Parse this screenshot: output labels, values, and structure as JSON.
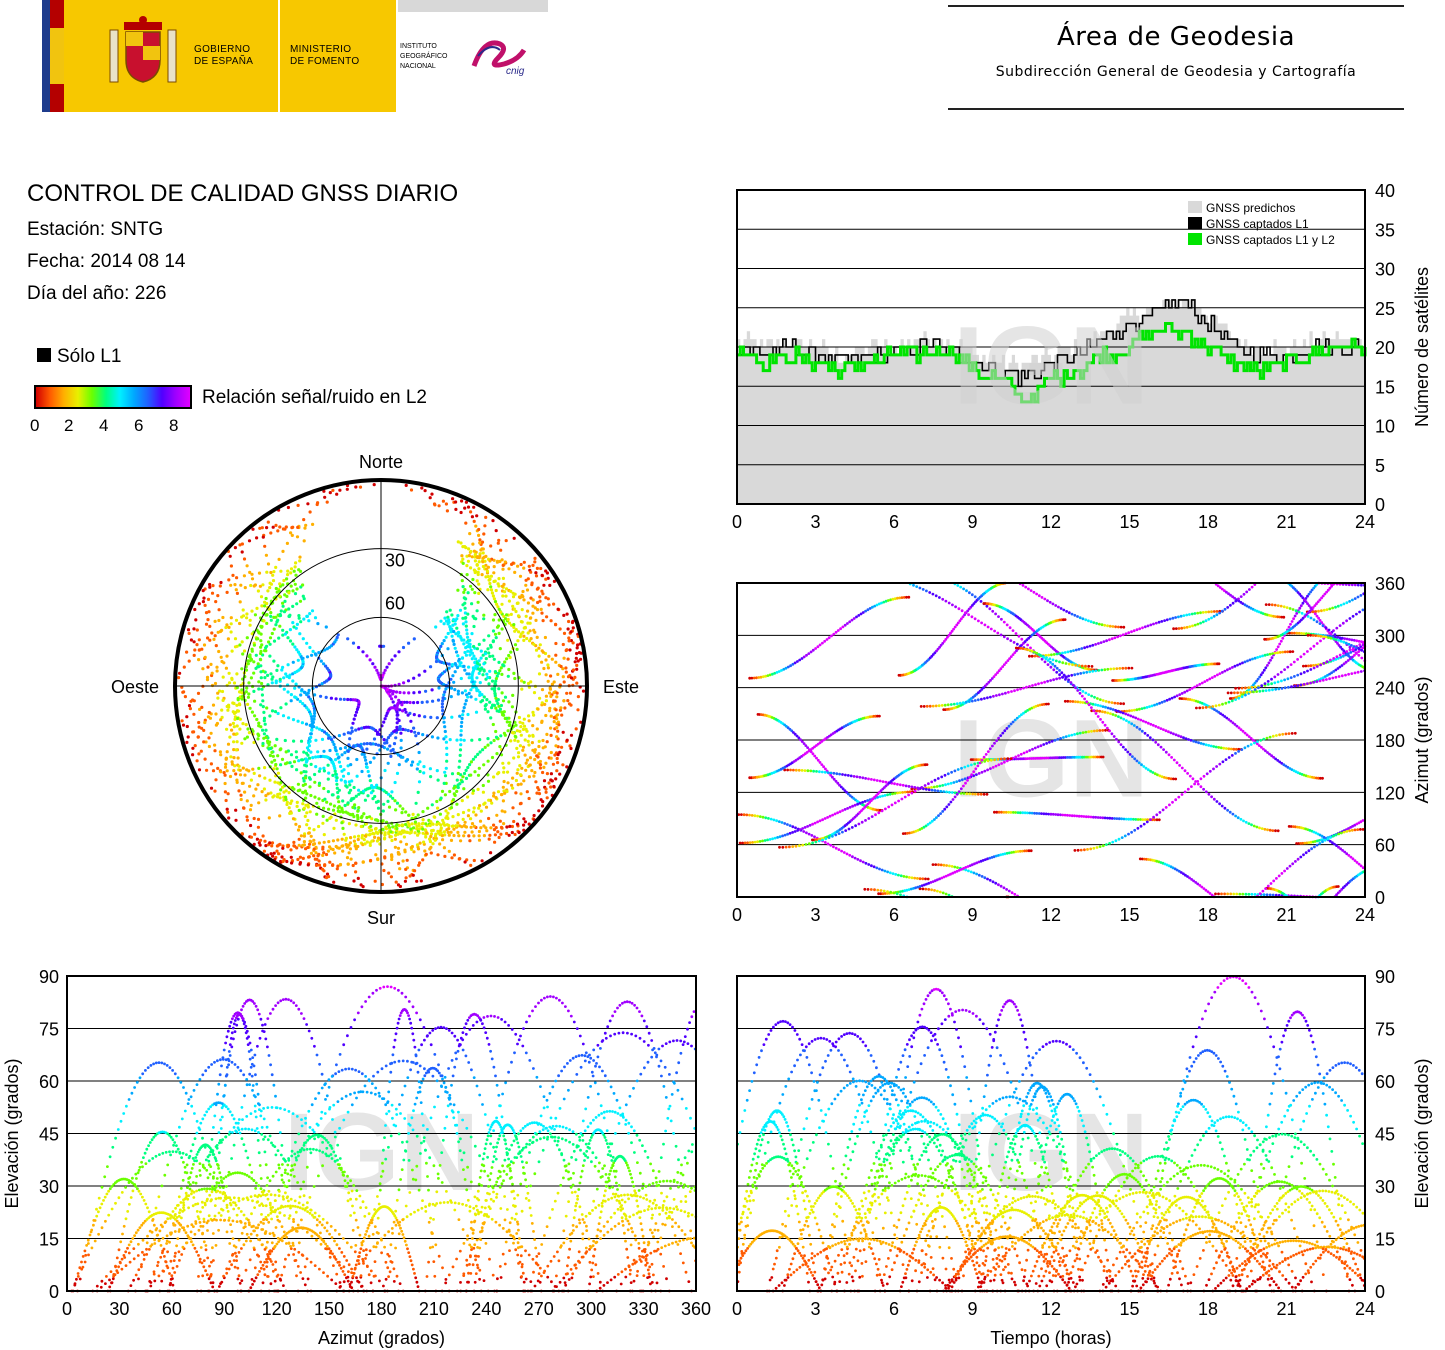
{
  "header": {
    "gov_line1": "GOBIERNO",
    "gov_line2": "DE ESPAÑA",
    "min_line1": "MINISTERIO",
    "min_line2": "DE FOMENTO",
    "inst_line1": "INSTITUTO",
    "inst_line2": "GEOGRÁFICO",
    "inst_line3": "NACIONAL",
    "cnig": "cnig",
    "area_title": "Área de Geodesia",
    "area_subtitle": "Subdirección General de Geodesia y Cartografía"
  },
  "info": {
    "title": "CONTROL DE CALIDAD GNSS DIARIO",
    "station": "Estación: SNTG",
    "date": "Fecha: 2014 08 14",
    "doy": "Día del año: 226"
  },
  "legend": {
    "l1_only": "Sólo L1",
    "snr_label": "Relación señal/ruido en L2",
    "snr_ticks": [
      "0",
      "2",
      "4",
      "6",
      "8"
    ]
  },
  "watermark": "IGN",
  "colors": {
    "predicted": "#d9d9d9",
    "l1": "#000000",
    "l1l2": "#00e400",
    "snr_scale": [
      "#d10000",
      "#ff5a00",
      "#ffb000",
      "#e8f000",
      "#6aff00",
      "#00ff80",
      "#00f0ff",
      "#00a8ff",
      "#2060ff",
      "#5000ff",
      "#a000ff",
      "#e000ff"
    ]
  },
  "chart_data": [
    {
      "id": "satellites",
      "type": "line",
      "title": "",
      "xlabel": "",
      "ylabel": "Número de satélites",
      "xlim": [
        0,
        24
      ],
      "ylim": [
        0,
        40
      ],
      "xticks": [
        "0",
        "3",
        "6",
        "9",
        "12",
        "15",
        "18",
        "21",
        "24"
      ],
      "yticks": [
        "0",
        "5",
        "10",
        "15",
        "20",
        "25",
        "30",
        "35",
        "40"
      ],
      "grid": "horizontal",
      "legend_position": "top-right",
      "x": [
        0,
        1,
        2,
        3,
        4,
        5,
        6,
        7,
        8,
        9,
        10,
        11,
        12,
        13,
        14,
        15,
        16,
        17,
        18,
        19,
        20,
        21,
        22,
        23,
        24
      ],
      "series": [
        {
          "name": "GNSS predichos",
          "values": [
            21,
            20,
            21,
            20,
            19,
            20,
            20,
            21,
            21,
            19,
            18,
            18,
            19,
            20,
            22,
            24,
            25,
            26,
            24,
            21,
            20,
            20,
            21,
            21,
            21
          ]
        },
        {
          "name": "GNSS captados L1",
          "values": [
            20,
            19,
            20,
            19,
            18,
            19,
            19,
            20,
            20,
            18,
            17,
            16,
            18,
            19,
            21,
            23,
            24,
            26,
            23,
            20,
            19,
            19,
            20,
            20,
            20
          ]
        },
        {
          "name": "GNSS captados L1 y L2",
          "values": [
            20,
            18,
            19,
            18,
            17,
            18,
            19,
            19,
            20,
            17,
            16,
            13,
            16,
            17,
            19,
            20,
            22,
            22,
            20,
            18,
            17,
            18,
            19,
            20,
            20
          ]
        }
      ]
    },
    {
      "id": "skyplot",
      "type": "scatter",
      "title": "",
      "radial_labels": [
        "30",
        "60"
      ],
      "directions": {
        "north": "Norte",
        "south": "Sur",
        "east": "Este",
        "west": "Oeste"
      },
      "description_values": "satellite tracks, elevation 0-90, colored by L2 SNR 0-8"
    },
    {
      "id": "azimuth_time",
      "type": "scatter",
      "xlabel": "",
      "ylabel": "Azimut (grados)",
      "xlim": [
        0,
        24
      ],
      "ylim": [
        0,
        360
      ],
      "xticks": [
        "0",
        "3",
        "6",
        "9",
        "12",
        "15",
        "18",
        "21",
        "24"
      ],
      "yticks": [
        "0",
        "60",
        "120",
        "180",
        "240",
        "300",
        "360"
      ],
      "grid": "horizontal"
    },
    {
      "id": "elev_azimuth",
      "type": "scatter",
      "xlabel": "Azimut (grados)",
      "ylabel": "Elevación (grados)",
      "xlim": [
        0,
        360
      ],
      "ylim": [
        0,
        90
      ],
      "xticks": [
        "0",
        "30",
        "60",
        "90",
        "120",
        "150",
        "180",
        "210",
        "240",
        "270",
        "300",
        "330",
        "360"
      ],
      "yticks": [
        "0",
        "15",
        "30",
        "45",
        "60",
        "75",
        "90"
      ],
      "grid": "horizontal"
    },
    {
      "id": "elev_time",
      "type": "scatter",
      "xlabel": "Tiempo (horas)",
      "ylabel": "Elevación (grados)",
      "xlim": [
        0,
        24
      ],
      "ylim": [
        0,
        90
      ],
      "xticks": [
        "0",
        "3",
        "6",
        "9",
        "12",
        "15",
        "18",
        "21",
        "24"
      ],
      "yticks": [
        "0",
        "15",
        "30",
        "45",
        "60",
        "75",
        "90"
      ],
      "grid": "horizontal"
    }
  ]
}
